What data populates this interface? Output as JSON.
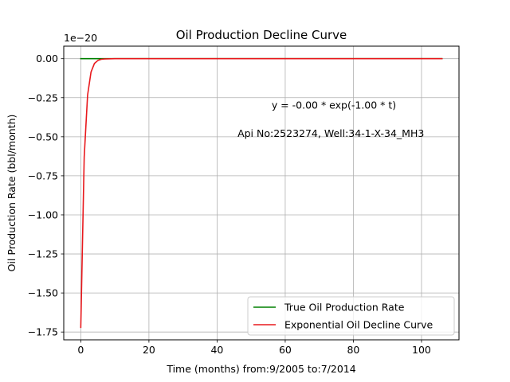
{
  "chart_data": {
    "type": "line",
    "title": "Oil Production Decline Curve",
    "xlabel": "Time (months) from:9/2005 to:7/2014",
    "ylabel": "Oil Production Rate (bbl/month)",
    "y_scale_factor_label": "1e−20",
    "xlim": [
      -5,
      111
    ],
    "ylim": [
      -1.8,
      0.08
    ],
    "x_ticks": [
      0,
      20,
      40,
      60,
      80,
      100
    ],
    "y_ticks": [
      0.0,
      -0.25,
      -0.5,
      -0.75,
      -1.0,
      -1.25,
      -1.5,
      -1.75
    ],
    "x_tick_labels": [
      "0",
      "20",
      "40",
      "60",
      "80",
      "100"
    ],
    "y_tick_labels": [
      "0.00",
      "−0.25",
      "−0.50",
      "−0.75",
      "−1.00",
      "−1.25",
      "−1.50",
      "−1.75"
    ],
    "grid": true,
    "legend_position": "lower-right",
    "annotations": [
      {
        "text": "y = -0.00 * exp(-1.00 * t)",
        "x": 56,
        "y": -0.3
      },
      {
        "text": "Api No:2523274, Well:34-1-X-34_MH3",
        "x": 46,
        "y": -0.48
      }
    ],
    "series": [
      {
        "name": "True Oil Production Rate",
        "color": "#008000",
        "x": [
          0,
          106
        ],
        "y": [
          0,
          0
        ]
      },
      {
        "name": "Exponential Oil Decline Curve",
        "color": "#e8191d",
        "x": [
          0,
          1,
          2,
          3,
          4,
          5,
          6,
          7,
          8,
          10,
          15,
          20,
          106
        ],
        "y": [
          -1.72,
          -0.63,
          -0.233,
          -0.086,
          -0.031,
          -0.012,
          -0.004,
          -0.002,
          -0.001,
          0,
          0,
          0,
          0
        ]
      }
    ]
  }
}
